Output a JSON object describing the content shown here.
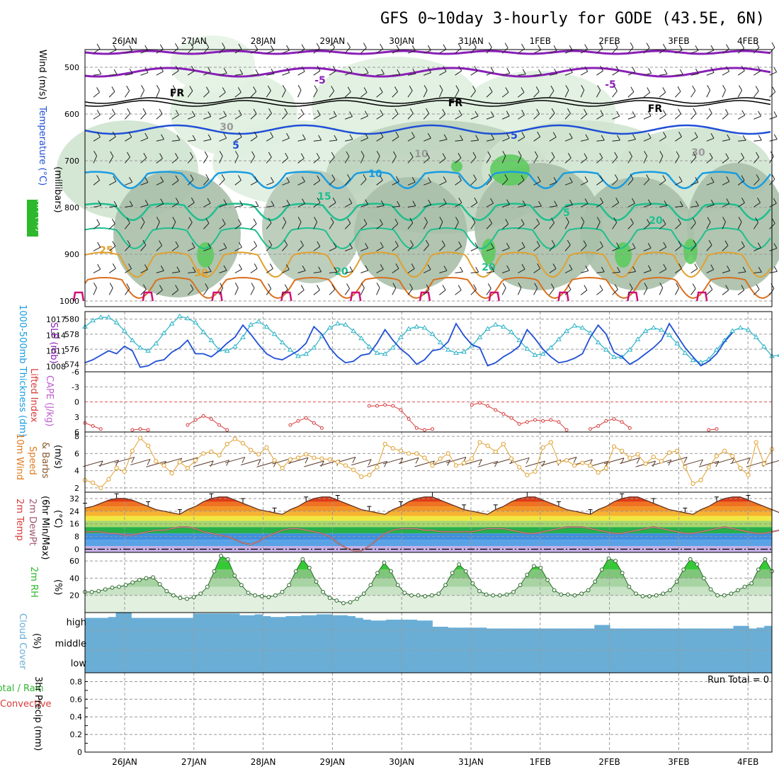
{
  "title": "GFS 0~10day 3-hourly for GODE (43.5E, 6N)",
  "dates": [
    "26JAN",
    "27JAN",
    "28JAN",
    "29JAN",
    "30JAN",
    "31JAN",
    "1FEB",
    "2FEB",
    "3FEB",
    "4FEB"
  ],
  "colors": {
    "purple": "#8a1fb8",
    "blue": "#1f4fd6",
    "cyan": "#1a9de0",
    "teal": "#1fbf8f",
    "orange": "#e0a030",
    "dkorange": "#d97020",
    "magenta": "#d0107a",
    "cape": "#d93b3b",
    "rh": "#2db82d",
    "cloud": "#6aaed6"
  },
  "upper": {
    "ylabels": [
      "500",
      "600",
      "700",
      "800",
      "900",
      "1000"
    ],
    "levels": [
      500,
      600,
      700,
      800,
      900,
      1000
    ],
    "contour_labels": [
      "-5",
      "-5",
      "FR",
      "FR",
      "FR",
      "5",
      "5",
      "10",
      "15",
      "5",
      "20",
      "25",
      "30",
      "20",
      "20",
      "10",
      "30",
      "30"
    ],
    "label_wind": "Wind (m/s)",
    "label_temp": "Temperature (°C)",
    "label_rh": "RH (%)",
    "label_mb": "(millibars)"
  },
  "thick": {
    "left_ticks": [
      "580",
      "578",
      "576",
      "574"
    ],
    "right_ticks": [
      "1017",
      "1014",
      "1011",
      "1008"
    ],
    "label_left": "1000-500mb Thickness (dm)",
    "label_right": "SLP (mb)"
  },
  "li": {
    "ticks": [
      "-6",
      "-3",
      "0",
      "3",
      "6"
    ],
    "label_li": "Lifted Index",
    "label_cape": "CAPE (J/kg)"
  },
  "wind": {
    "ticks": [
      "8",
      "6",
      "4",
      "2"
    ],
    "label_a": "10m Wind",
    "label_b": "Speed",
    "label_c": "& Barbs",
    "label_unit": "(m/s)"
  },
  "temp": {
    "ticks": [
      "32",
      "24",
      "16",
      "8",
      "0"
    ],
    "label_a": "2m Temp",
    "label_b": "2m DewPt",
    "label_c": "(6hr Min/Max)",
    "label_unit": "(°C)"
  },
  "rh": {
    "ticks": [
      "60",
      "40",
      "20"
    ],
    "label_a": "2m RH",
    "label_unit": "(%)"
  },
  "cloud": {
    "ticks": [
      "high",
      "middle",
      "low"
    ],
    "label_a": "Cloud Cover",
    "label_unit": "(%)"
  },
  "precip": {
    "ticks": [
      "0.8",
      "0.6",
      "0.4",
      "0.2",
      "0"
    ],
    "label_a": "Total / Rain",
    "label_b": "Convective",
    "label_c": "3hr Precip (mm)",
    "run_total": "Run Total = 0"
  },
  "chart_data": [
    {
      "type": "line",
      "title": "1000-500mb Thickness (dm)",
      "x": "3-hourly steps 25JAN12Z-4FEB06Z",
      "series": [
        {
          "name": "Thickness",
          "values": [
            574.2,
            574.6,
            575.2,
            575.8,
            575.4,
            576.4,
            575.8,
            573.6,
            573.8,
            574.4,
            574.6,
            575.6,
            576.2,
            577.2,
            575.4,
            575.4,
            575,
            575.8,
            576.8,
            577.6,
            579.2,
            578,
            576.6,
            575.4,
            574.8,
            574.6,
            575.2,
            575.8,
            576.8,
            579,
            578,
            576.2,
            575,
            574.2,
            574.4,
            575.2,
            575.4,
            576.8,
            578.6,
            577.2,
            576,
            575.2,
            574,
            574.6,
            575.8,
            576,
            577,
            579.4,
            577.8,
            576.6,
            576.2,
            573.8,
            574.2,
            575,
            575.6,
            576.4,
            578.6,
            577.4,
            576,
            575,
            574.2,
            574.4,
            574.8,
            575.4,
            577.6,
            579.2,
            578,
            575.6,
            575,
            574,
            574.6,
            575.4,
            576.2,
            577.2,
            579.4,
            577.8,
            576.2,
            575,
            573.8,
            574.4,
            575.4,
            577,
            578.2
          ]
        }
      ],
      "ylim": [
        573,
        581
      ]
    },
    {
      "type": "line",
      "title": "SLP (mb)",
      "series": [
        {
          "name": "SLP",
          "values": [
            1015.6,
            1016.8,
            1017.4,
            1017.4,
            1016.4,
            1014.8,
            1013,
            1011.6,
            1011,
            1012.4,
            1014.4,
            1016.2,
            1017.6,
            1017.2,
            1016.4,
            1014.6,
            1013,
            1011.2,
            1011,
            1011.8,
            1013.6,
            1016,
            1016.6,
            1015.6,
            1014.2,
            1012.6,
            1011.2,
            1010,
            1010.4,
            1011.6,
            1013.8,
            1015.4,
            1016.2,
            1016,
            1014.8,
            1013.4,
            1011.8,
            1010.6,
            1010.4,
            1011.6,
            1013.6,
            1015.2,
            1015.6,
            1015.4,
            1014.2,
            1012.6,
            1011.2,
            1010.6,
            1010.8,
            1012,
            1013.6,
            1015.2,
            1016,
            1015.6,
            1014.6,
            1013,
            1011.4,
            1010.2,
            1010.4,
            1011.6,
            1013.2,
            1014.8,
            1015.8,
            1015.4,
            1014.4,
            1012.6,
            1011.2,
            1009.8,
            1009.8,
            1011.2,
            1013.2,
            1014.8,
            1015.4,
            1015,
            1014,
            1012.4,
            1010.6,
            1009.2,
            1008.8,
            1009.4,
            1011.2,
            1013,
            1014.8,
            1015.4,
            1015,
            1013.6,
            1011.8,
            1010,
            1010.2,
            1011.2
          ]
        }
      ],
      "ylim": [
        1007,
        1018.5
      ]
    },
    {
      "type": "line",
      "title": "Lifted Index",
      "series": [
        {
          "name": "LI",
          "values": [
            4.2,
            4.8,
            5.4,
            null,
            null,
            null,
            5.6,
            5.4,
            5.6,
            null,
            null,
            null,
            null,
            4.6,
            3.6,
            2.8,
            3.4,
            4.6,
            5.6,
            null,
            null,
            null,
            null,
            null,
            null,
            null,
            4.6,
            3.8,
            3.2,
            4.2,
            5.2,
            null,
            null,
            null,
            null,
            null,
            0.8,
            0.8,
            0.6,
            0.8,
            1.6,
            3.4,
            5.2,
            5.6,
            5.4,
            null,
            null,
            null,
            null,
            0.6,
            0.2,
            0.8,
            1.6,
            2.4,
            3.2,
            4.4,
            4,
            3.6,
            3.8,
            3.6,
            4,
            5.6,
            null,
            null,
            5.4,
            4.8,
            3.8,
            3.4,
            4,
            5.2,
            null,
            null,
            null,
            null,
            null,
            null,
            null,
            null,
            null,
            5.6,
            5.4
          ]
        }
      ],
      "ylim": [
        -6,
        6
      ]
    },
    {
      "type": "line",
      "title": "10m Wind Speed (m/s)",
      "series": [
        {
          "name": "Speed",
          "values": [
            2.9,
            2.6,
            2,
            3,
            4.3,
            3.9,
            6.3,
            7.8,
            6.9,
            5.1,
            4.6,
            3.7,
            5,
            4.3,
            5.2,
            6,
            6.2,
            5.8,
            7.1,
            7.7,
            7.2,
            6.4,
            5.9,
            6.7,
            5.2,
            4.3,
            5.3,
            5.5,
            5.9,
            5.5,
            5.4,
            5.3,
            5,
            4.6,
            4.1,
            3.3,
            3.5,
            4.4,
            7.1,
            6.6,
            6.3,
            6,
            6,
            5.5,
            4.6,
            5.4,
            6,
            4.6,
            4.9,
            5.4,
            7.3,
            6.9,
            6.2,
            7.1,
            5.4,
            4.4,
            3.5,
            3.9,
            6.7,
            7.3,
            5,
            5.2,
            4.6,
            4.9,
            4.6,
            3.8,
            4.3,
            6.8,
            6.3,
            5.5,
            5.9,
            4.8,
            5.6,
            5.1,
            6.1,
            6.3,
            4.4,
            2.5,
            2.9,
            4.4,
            5.7,
            6.3,
            5.7,
            4.3,
            3.5,
            7.3,
            4.8,
            6.5
          ]
        }
      ],
      "ylim": [
        1.5,
        8.5
      ]
    },
    {
      "type": "area",
      "title": "2m Temp (°C)",
      "series": [
        {
          "name": "Temp",
          "values": [
            26,
            27,
            29,
            31,
            32,
            32,
            31,
            29,
            27,
            25,
            24,
            23,
            22,
            25,
            27,
            30,
            32,
            33,
            33,
            31,
            29,
            27,
            25,
            24,
            23,
            22,
            25,
            27,
            30,
            32,
            33,
            33,
            31,
            29,
            27,
            25,
            24,
            23,
            22,
            25,
            27,
            30,
            32,
            33,
            33,
            31,
            29,
            27,
            25,
            24,
            23,
            22,
            25,
            27,
            30,
            32,
            33,
            33,
            31,
            29,
            27,
            25,
            24,
            23,
            22,
            25,
            27,
            30,
            32,
            33,
            33,
            31,
            29,
            27,
            25,
            24,
            23,
            22,
            25,
            27,
            30,
            32,
            33,
            33,
            31,
            29,
            27,
            25,
            23
          ]
        },
        {
          "name": "DewPt",
          "values": [
            11,
            11,
            11,
            10,
            10,
            9,
            9,
            10,
            11,
            12,
            12,
            13,
            14,
            14,
            13,
            11,
            10,
            9,
            8,
            6,
            4,
            3,
            5,
            8,
            10,
            12,
            13,
            13,
            12,
            11,
            10,
            8,
            4,
            1,
            -1,
            -1,
            2,
            6,
            10,
            12,
            13,
            13,
            13,
            12,
            12,
            11,
            11,
            11,
            11,
            11,
            12,
            13,
            13,
            13,
            12,
            11,
            10,
            10,
            11,
            12,
            13,
            14,
            14,
            14,
            13,
            12,
            11,
            10,
            10,
            11,
            12,
            13,
            14,
            13,
            12,
            11,
            10,
            10,
            11,
            12,
            13,
            14,
            13,
            12,
            11,
            10,
            10,
            11,
            12
          ]
        }
      ],
      "ylim": [
        -2,
        36
      ]
    },
    {
      "type": "area",
      "title": "2m RH (%)",
      "series": [
        {
          "name": "RH",
          "values": [
            24,
            24,
            25,
            27,
            29,
            30,
            32,
            35,
            38,
            40,
            41,
            33,
            25,
            20,
            17,
            16,
            18,
            22,
            30,
            48,
            66,
            62,
            43,
            32,
            23,
            20,
            19,
            18,
            20,
            24,
            32,
            48,
            62,
            52,
            36,
            24,
            17,
            14,
            11,
            12,
            16,
            22,
            32,
            46,
            58,
            48,
            32,
            23,
            20,
            20,
            19,
            20,
            22,
            32,
            46,
            56,
            48,
            34,
            25,
            21,
            20,
            20,
            21,
            24,
            32,
            44,
            54,
            52,
            38,
            26,
            21,
            21,
            20,
            22,
            26,
            36,
            50,
            63,
            60,
            46,
            30,
            22,
            19,
            19,
            20,
            22,
            26,
            36,
            50,
            62,
            56,
            40,
            27,
            20,
            20,
            22,
            26,
            30,
            34,
            50,
            62,
            48
          ]
        }
      ],
      "ylim": [
        0,
        70
      ]
    },
    {
      "type": "area",
      "title": "Cloud Cover (%)",
      "series": [
        {
          "name": "High",
          "values": [
            70,
            70,
            70,
            75,
            100,
            100,
            70,
            70,
            70,
            70,
            70,
            70,
            70,
            70,
            95,
            95,
            95,
            95,
            95,
            95,
            85,
            85,
            90,
            80,
            75,
            75,
            80,
            80,
            85,
            85,
            90,
            90,
            85,
            85,
            80,
            70,
            60,
            55,
            55,
            60,
            60,
            60,
            60,
            55,
            55,
            20,
            20,
            15,
            15,
            15,
            15,
            15,
            10,
            10,
            10,
            10,
            10,
            10,
            10,
            10,
            10,
            10,
            10,
            10,
            10,
            10,
            30,
            30,
            10,
            10,
            10,
            10,
            10,
            10,
            10,
            10,
            10,
            10,
            10,
            10,
            10,
            10,
            10,
            10,
            25,
            25,
            10,
            15,
            25
          ]
        },
        {
          "name": "Middle",
          "values": [
            100
          ]
        },
        {
          "name": "Low",
          "values": [
            100
          ]
        }
      ],
      "ylim": [
        0,
        100
      ]
    },
    {
      "type": "bar",
      "title": "3hr Precip (mm)",
      "series": [
        {
          "name": "Total / Rain",
          "values": [
            0
          ]
        },
        {
          "name": "Convective",
          "values": [
            0
          ]
        }
      ],
      "ylim": [
        0,
        0.9
      ]
    }
  ]
}
